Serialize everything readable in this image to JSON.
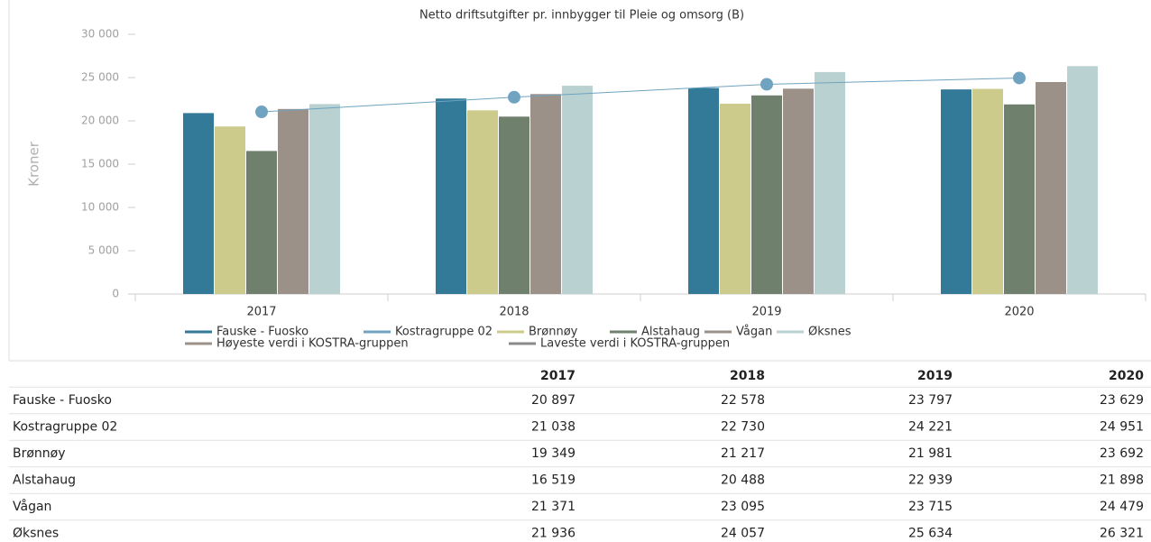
{
  "chart_data": {
    "type": "bar",
    "title": "Netto driftsutgifter pr. innbygger til Pleie og omsorg (B)",
    "ylabel": "Kroner",
    "categories": [
      "2017",
      "2018",
      "2019",
      "2020"
    ],
    "ylim": [
      0,
      30000
    ],
    "yticks": [
      0,
      {
        "value": 5000,
        "label": "5 000"
      },
      {
        "value": 10000,
        "label": "10 000"
      },
      {
        "value": 15000,
        "label": "15 000"
      },
      {
        "value": 20000,
        "label": "20 000"
      },
      {
        "value": 25000,
        "label": "25 000"
      },
      {
        "value": 30000,
        "label": "30 000"
      }
    ],
    "grid": false,
    "series": [
      {
        "name": "Fauske - Fuosko",
        "type": "bar",
        "color": "#337a99",
        "values": [
          20897,
          22578,
          23797,
          23629
        ],
        "value_labels": [
          "20 897",
          "22 578",
          "23 797",
          "23 629"
        ]
      },
      {
        "name": "Kostragruppe 02",
        "type": "line",
        "color": "#6fa3c0",
        "values": [
          21038,
          22730,
          24221,
          24951
        ],
        "value_labels": [
          "21 038",
          "22 730",
          "24 221",
          "24 951"
        ]
      },
      {
        "name": "Brønnøy",
        "type": "bar",
        "color": "#cdcb8c",
        "values": [
          19349,
          21217,
          21981,
          23692
        ],
        "value_labels": [
          "19 349",
          "21 217",
          "21 981",
          "23 692"
        ]
      },
      {
        "name": "Alstahaug",
        "type": "bar",
        "color": "#6f806c",
        "values": [
          16519,
          20488,
          22939,
          21898
        ],
        "value_labels": [
          "16 519",
          "20 488",
          "22 939",
          "21 898"
        ]
      },
      {
        "name": "Vågan",
        "type": "bar",
        "color": "#9c9188",
        "values": [
          21371,
          23095,
          23715,
          24479
        ],
        "value_labels": [
          "21 371",
          "23 095",
          "23 715",
          "24 479"
        ]
      },
      {
        "name": "Øksnes",
        "type": "bar",
        "color": "#b9d1d0",
        "values": [
          21936,
          24057,
          25634,
          26321
        ],
        "value_labels": [
          "21 936",
          "24 057",
          "25 634",
          "26 321"
        ]
      }
    ],
    "legend_extra": [
      {
        "name": "Høyeste verdi i KOSTRA-gruppen",
        "color": "#9c9188"
      },
      {
        "name": "Laveste verdi i KOSTRA-gruppen",
        "color": "#8a8a8a"
      }
    ]
  }
}
